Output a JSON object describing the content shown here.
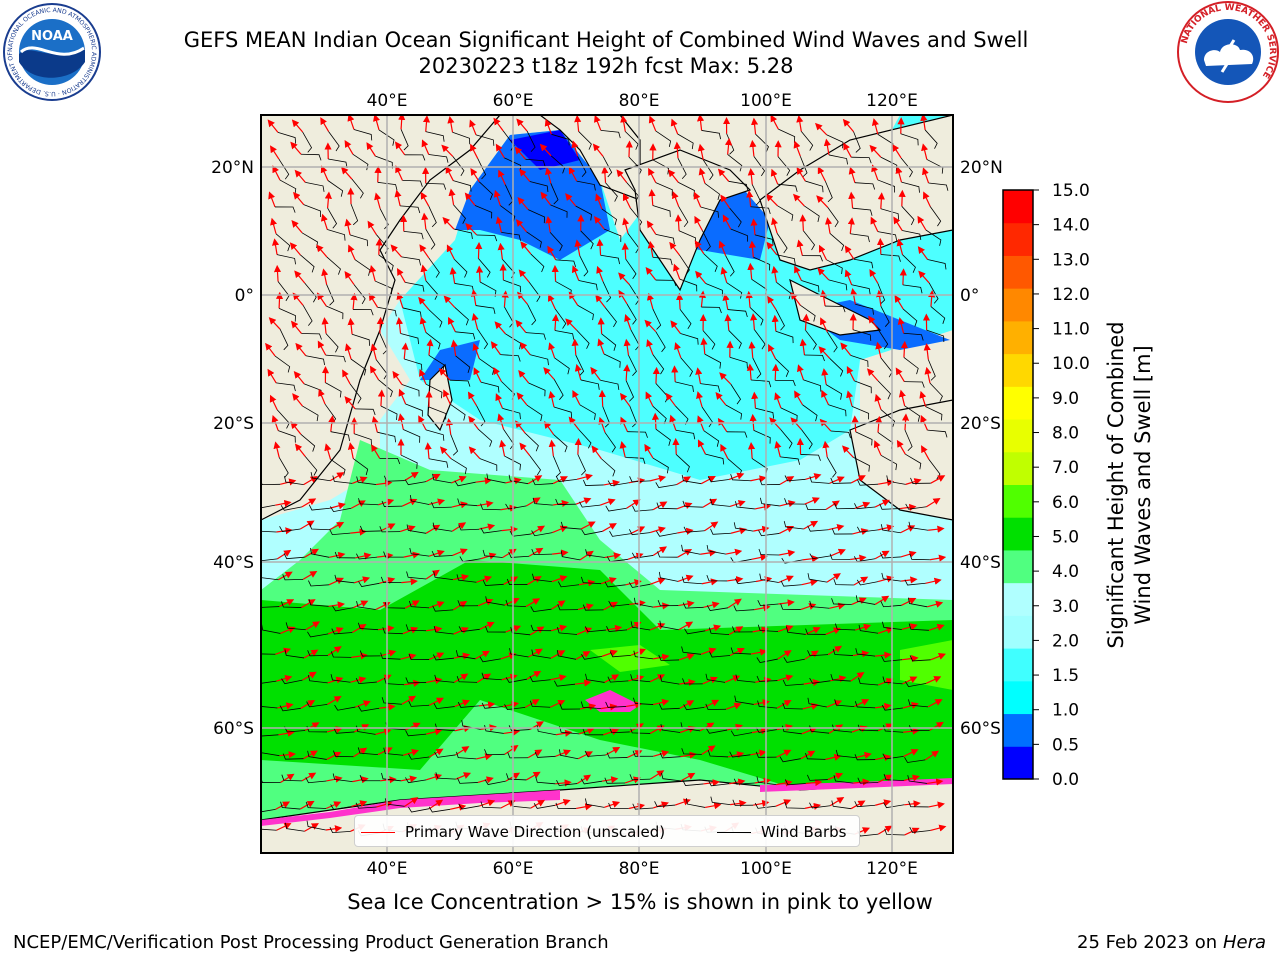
{
  "header": {
    "title_line1": "GEFS MEAN Indian Ocean Significant Height of Combined Wind Waves and Swell",
    "title_line2": "20230223 t18z 192h fcst   Max: 5.28"
  },
  "logos": {
    "noaa": {
      "text": "NOAA",
      "ring_text": "NATIONAL OCEANIC AND ATMOSPHERIC ADMINISTRATION · U.S. DEPARTMENT OF COMMERCE"
    },
    "nws": {
      "ring_text": "NATIONAL WEATHER SERVICE"
    }
  },
  "map": {
    "lon_ticks": [
      "40°E",
      "60°E",
      "80°E",
      "100°E",
      "120°E"
    ],
    "lat_ticks": [
      "20°N",
      "0°",
      "20°S",
      "40°S",
      "60°S"
    ],
    "colors": {
      "land": "#efeddd",
      "grid": "#b0b0b0",
      "wave_arrow": "#ff0000",
      "barb": "#000000",
      "ice": "#ff33cc"
    }
  },
  "colorbar": {
    "label_line1": "Significant Height of Combined",
    "label_line2": "Wind Waves and Swell [m]",
    "ticks": [
      "0.0",
      "0.5",
      "1.0",
      "1.5",
      "2.0",
      "3.0",
      "4.0",
      "5.0",
      "6.0",
      "7.0",
      "8.0",
      "9.0",
      "10.0",
      "11.0",
      "12.0",
      "13.0",
      "14.0",
      "15.0"
    ],
    "colors": [
      "#0000ff",
      "#0070ff",
      "#00ffff",
      "#40ffff",
      "#a0ffff",
      "#b0ffff",
      "#50ff80",
      "#00e000",
      "#50ff00",
      "#c0ff00",
      "#e8ff00",
      "#ffff00",
      "#ffd800",
      "#ffb000",
      "#ff8800",
      "#ff5800",
      "#ff2800",
      "#ff0000"
    ]
  },
  "legend": {
    "wave_label": "Primary Wave Direction (unscaled)",
    "barb_label": "Wind Barbs"
  },
  "caption": "Sea Ice Concentration > 15% is shown in pink to yellow",
  "footer": {
    "left": "NCEP/EMC/Verification Post Processing Product Generation Branch",
    "right_date": "25 Feb 2023 on",
    "right_host": "Hera"
  }
}
